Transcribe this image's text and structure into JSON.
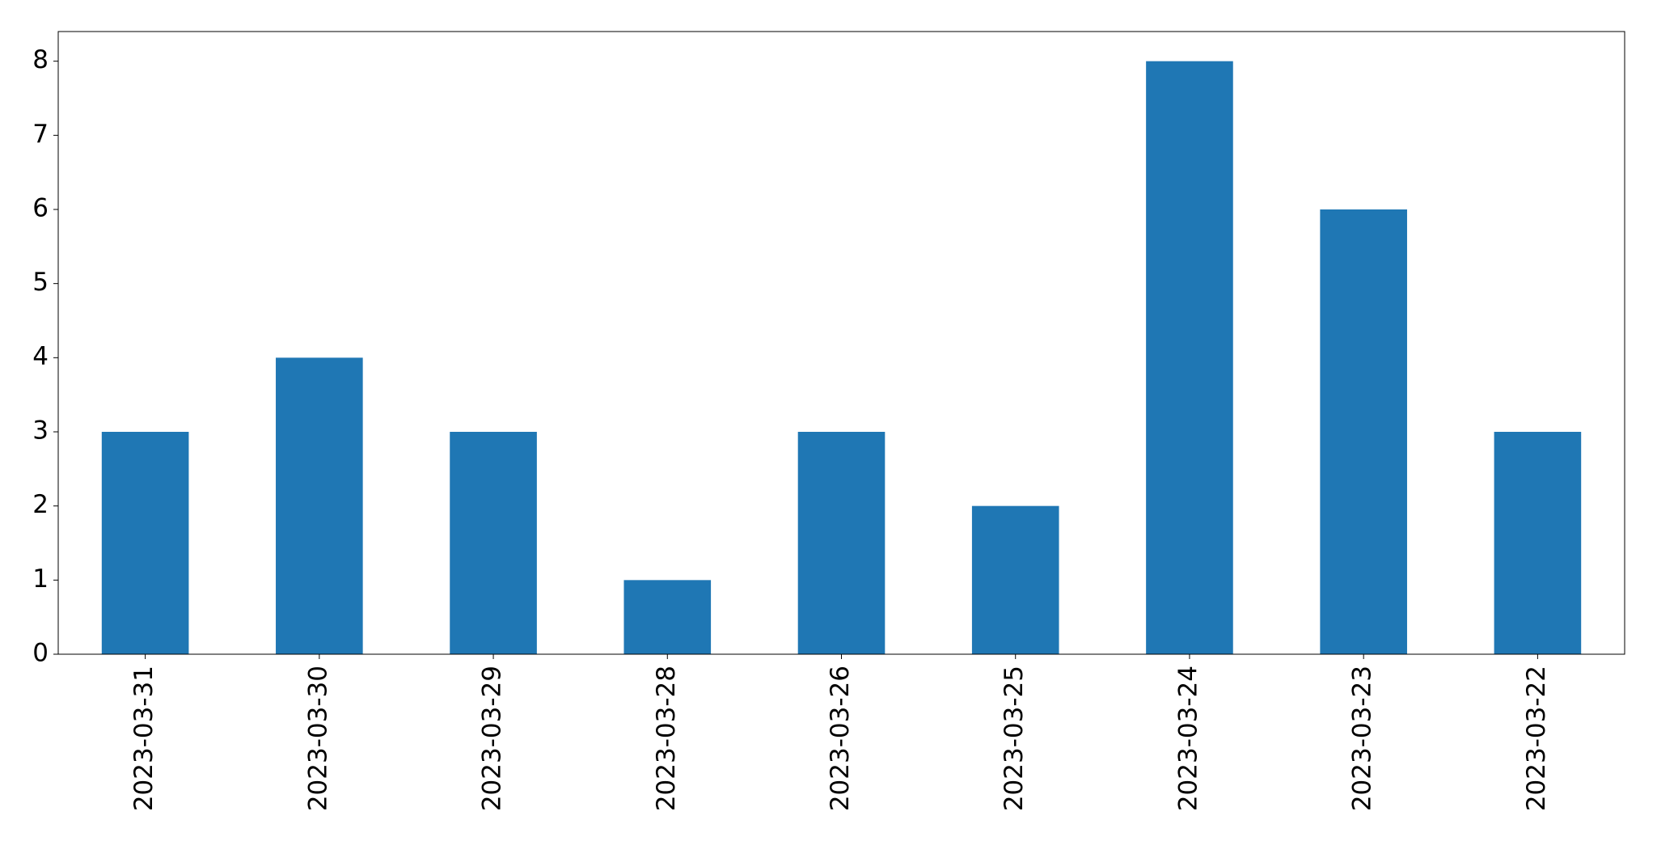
{
  "chart_data": {
    "type": "bar",
    "categories": [
      "2023-03-31",
      "2023-03-30",
      "2023-03-29",
      "2023-03-28",
      "2023-03-26",
      "2023-03-25",
      "2023-03-24",
      "2023-03-23",
      "2023-03-22"
    ],
    "values": [
      3,
      4,
      3,
      1,
      3,
      2,
      8,
      6,
      3
    ],
    "color": "#1f77b4",
    "ylim": [
      0,
      8.4
    ],
    "yticks": [
      0,
      1,
      2,
      3,
      4,
      5,
      6,
      7,
      8
    ],
    "grid": false
  }
}
